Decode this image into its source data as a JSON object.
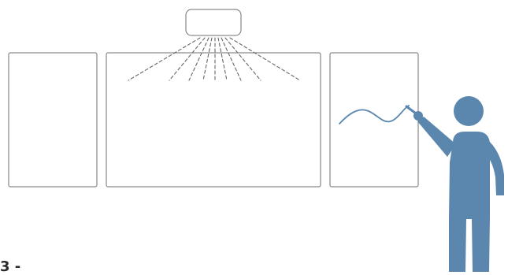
{
  "diagram": {
    "colors": {
      "outline": "#6f6f6f",
      "dashes": "#666666",
      "person": "#5b87ae",
      "ink": "#5b87ae",
      "text": "#2b2b2b"
    },
    "elements": [
      "projector-icon",
      "side-panel-left",
      "main-screen",
      "side-panel-right",
      "projection-rays",
      "pen-stroke",
      "person-icon"
    ],
    "corner_text": "3 -"
  }
}
